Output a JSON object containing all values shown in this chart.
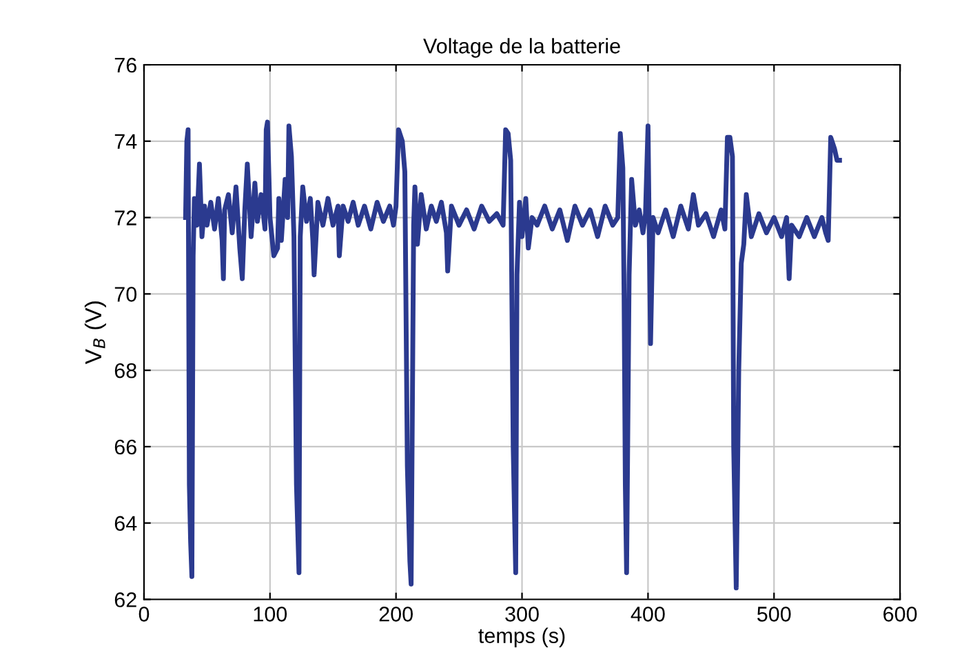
{
  "chart_data": {
    "type": "line",
    "title": "Voltage de la batterie",
    "xlabel": "temps (s)",
    "ylabel": "V$_{B}$ (V)",
    "xlim": [
      0,
      600
    ],
    "ylim": [
      62,
      76
    ],
    "xticks": [
      0,
      100,
      200,
      300,
      400,
      500,
      600
    ],
    "yticks": [
      62,
      64,
      66,
      68,
      70,
      72,
      74,
      76
    ],
    "grid": true,
    "line_style": "solid",
    "marker": "none",
    "series": [
      {
        "color": "#2b3a8f",
        "x": [
          33,
          34,
          35,
          36,
          37,
          38,
          39,
          40,
          42,
          44,
          46,
          48,
          50,
          53,
          56,
          59,
          62,
          63,
          64,
          67,
          70,
          73,
          76,
          78,
          80,
          82,
          85,
          88,
          90,
          93,
          96,
          97,
          98,
          100,
          103,
          106,
          107,
          109,
          112,
          114,
          115,
          117,
          119,
          121,
          123,
          124,
          126,
          129,
          132,
          134,
          135,
          138,
          142,
          146,
          150,
          154,
          155,
          158,
          162,
          166,
          170,
          175,
          180,
          185,
          190,
          195,
          198,
          200,
          202,
          205,
          207,
          209,
          211,
          212,
          214,
          215,
          217,
          220,
          224,
          228,
          232,
          236,
          240,
          241,
          244,
          250,
          256,
          262,
          268,
          274,
          280,
          285,
          287,
          289,
          291,
          293,
          295,
          296,
          298,
          300,
          303,
          305,
          308,
          312,
          318,
          324,
          330,
          336,
          342,
          348,
          354,
          360,
          366,
          372,
          376,
          378,
          380,
          381,
          382,
          383,
          385,
          387,
          390,
          393,
          396,
          398,
          400,
          401,
          402,
          404,
          408,
          414,
          420,
          426,
          432,
          436,
          440,
          446,
          452,
          458,
          461,
          463,
          465,
          467,
          468,
          470,
          472,
          474,
          476,
          478,
          482,
          488,
          494,
          500,
          506,
          510,
          512,
          514,
          520,
          526,
          532,
          538,
          541,
          543,
          545,
          548,
          550,
          552
        ],
        "values": [
          72,
          74,
          74.3,
          65,
          63.5,
          62.6,
          71,
          72.5,
          71.8,
          73.4,
          71.5,
          72.3,
          71.8,
          72.4,
          71.7,
          72.5,
          71.4,
          70.4,
          72.2,
          72.6,
          71.6,
          72.8,
          71.2,
          70.4,
          72.2,
          73.4,
          71.5,
          72.9,
          71.9,
          72.6,
          71.7,
          74.3,
          74.5,
          72,
          71,
          71.2,
          72.5,
          71.4,
          73,
          72,
          74.4,
          73.6,
          71.5,
          65,
          62.7,
          71.5,
          72.8,
          71.9,
          72.5,
          71.4,
          70.5,
          72.4,
          71.8,
          72.5,
          71.8,
          72.3,
          71,
          72.3,
          71.9,
          72.4,
          71.8,
          72.3,
          71.7,
          72.4,
          71.9,
          72.3,
          71.8,
          72.3,
          74.3,
          74,
          73.2,
          65.5,
          63,
          62.4,
          71.8,
          72.8,
          71.3,
          72.6,
          71.7,
          72.3,
          71.9,
          72.4,
          71.6,
          70.6,
          72.3,
          71.8,
          72.2,
          71.7,
          72.3,
          71.9,
          72.1,
          71.8,
          74.3,
          74.2,
          73.5,
          66,
          62.7,
          70.5,
          72.4,
          71.5,
          72.5,
          71.2,
          72,
          71.8,
          72.3,
          71.7,
          72.2,
          71.4,
          72.3,
          71.8,
          72.2,
          71.5,
          72.3,
          71.8,
          72,
          74.2,
          73.3,
          70,
          65,
          62.7,
          70.5,
          73,
          71.8,
          72.2,
          71.6,
          72.1,
          74.4,
          71.5,
          68.7,
          72,
          71.6,
          72.2,
          71.5,
          72.3,
          71.7,
          72.6,
          71.8,
          72.1,
          71.5,
          72.2,
          71.7,
          74.1,
          74.1,
          73.6,
          66,
          62.3,
          68,
          70.8,
          71.3,
          72.6,
          71.5,
          72.1,
          71.6,
          72,
          71.5,
          72,
          70.4,
          71.8,
          71.5,
          72,
          71.5,
          72,
          71.6,
          71.4,
          74.1,
          73.8,
          73.5,
          73.5
        ]
      }
    ]
  }
}
